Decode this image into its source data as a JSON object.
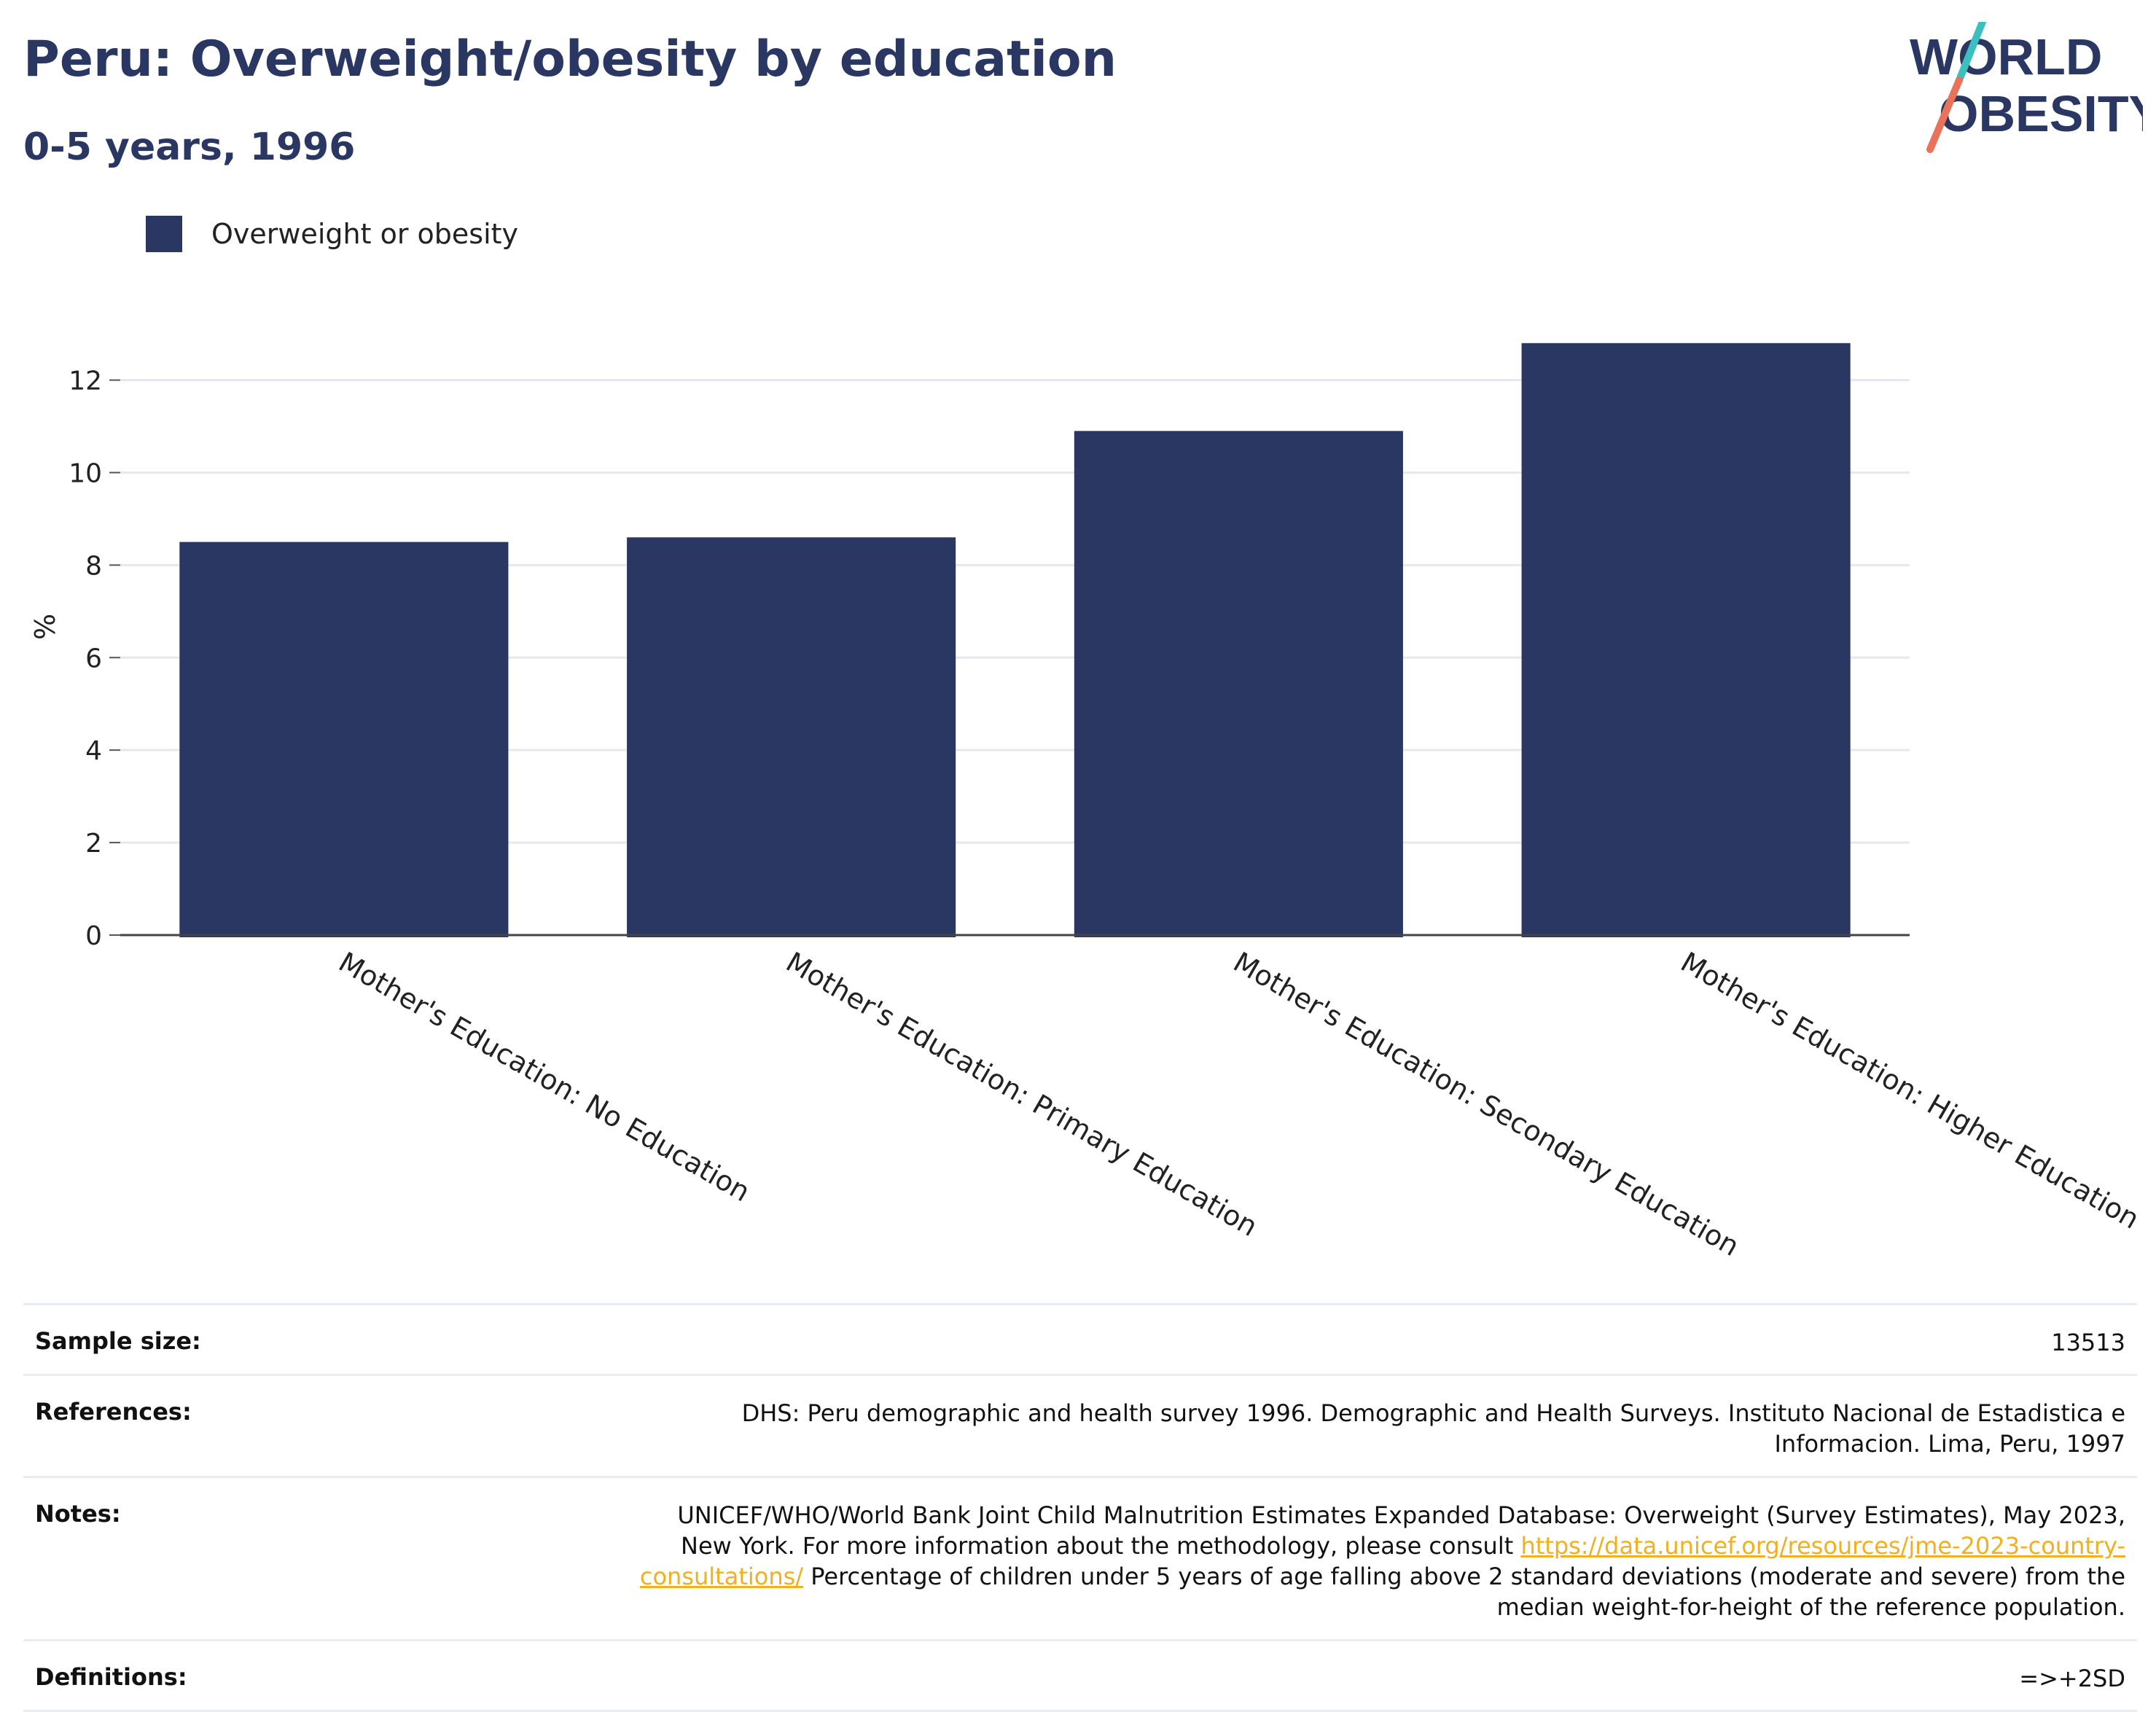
{
  "header": {
    "title": "Peru: Overweight/obesity by education",
    "subtitle": "0-5 years, 1996"
  },
  "logo": {
    "line1": "WORLD",
    "line2": "OBESITY",
    "colors": {
      "text": "#2b3763",
      "slash_top": "#3bbfbf",
      "slash_bottom": "#e8735a"
    }
  },
  "legend": {
    "label": "Overweight or obesity",
    "color": "#2b3763"
  },
  "chart_data": {
    "type": "bar",
    "categories": [
      "Mother's Education: No Education",
      "Mother's Education: Primary Education",
      "Mother's Education: Secondary Education",
      "Mother's Education: Higher Education"
    ],
    "series": [
      {
        "name": "Overweight or obesity",
        "values": [
          8.5,
          8.6,
          10.9,
          12.8
        ],
        "color": "#2b3763"
      }
    ],
    "ylabel": "%",
    "ylim": [
      0,
      13.6
    ],
    "yticks": [
      0,
      2,
      4,
      6,
      8,
      10,
      12
    ],
    "grid": true,
    "legend_position": "top-left"
  },
  "info": {
    "sample_size": {
      "label": "Sample size:",
      "value": "13513"
    },
    "references": {
      "label": "References:",
      "value": "DHS: Peru demographic and health survey 1996. Demographic and Health Surveys. Instituto Nacional de Estadistica e Informacion. Lima, Peru, 1997"
    },
    "notes": {
      "label": "Notes:",
      "text_before": "UNICEF/WHO/World Bank Joint Child Malnutrition Estimates Expanded Database: Overweight (Survey Estimates), May 2023, New York. For more information about the methodology, please consult ",
      "link": "https://data.unicef.org/resources/jme-2023-country-consultations/",
      "text_after": " Percentage of children under 5 years of age falling above 2 standard deviations (moderate and severe) from the median weight-for-height of the reference population."
    },
    "definitions": {
      "label": "Definitions:",
      "value": "=>+2SD"
    }
  }
}
